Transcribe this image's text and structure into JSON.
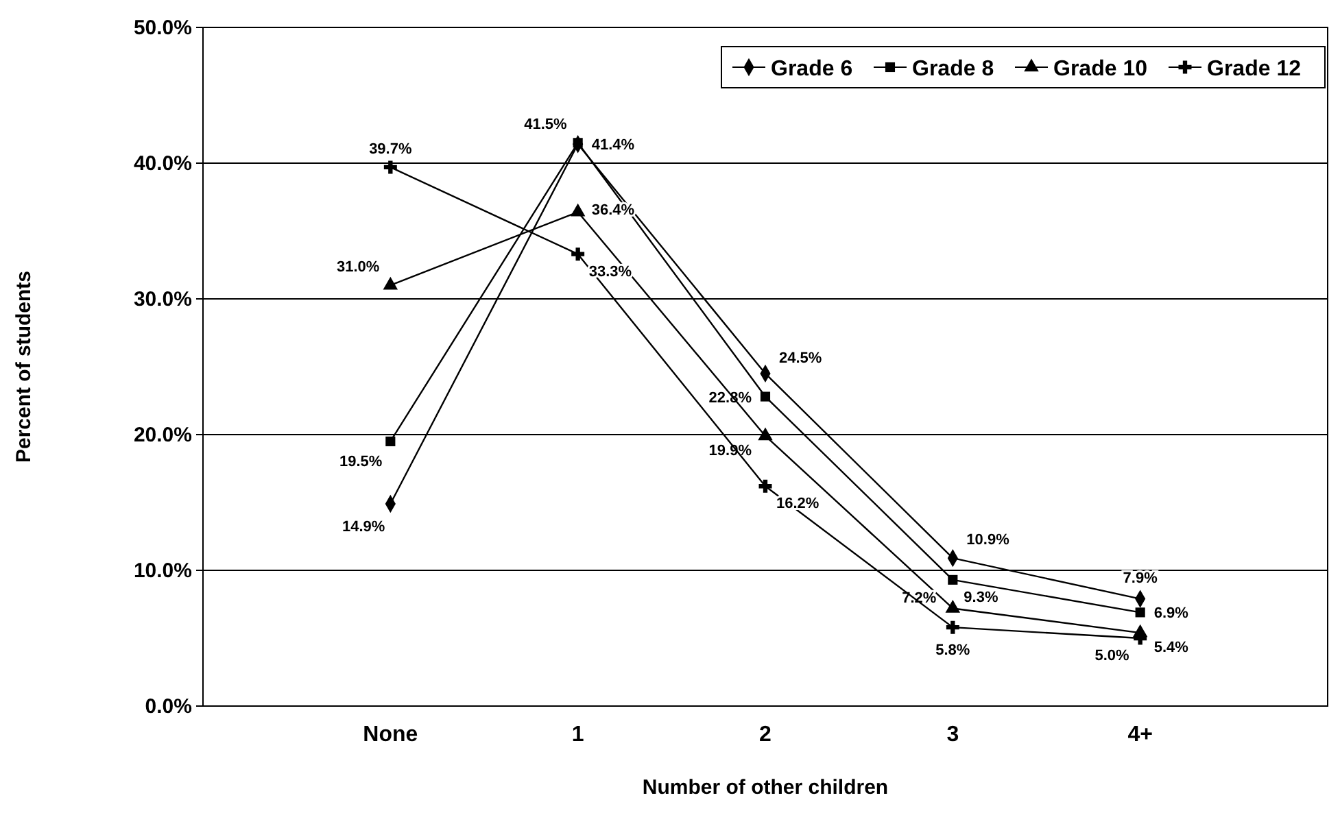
{
  "chart_data": {
    "type": "line",
    "xlabel": "Number of other children",
    "ylabel": "Percent of students",
    "categories": [
      "None",
      "1",
      "2",
      "3",
      "4+"
    ],
    "ylim": [
      0,
      50
    ],
    "yticks": [
      {
        "value": 0,
        "label": "0.0%"
      },
      {
        "value": 10,
        "label": "10.0%"
      },
      {
        "value": 20,
        "label": "20.0%"
      },
      {
        "value": 30,
        "label": "30.0%"
      },
      {
        "value": 40,
        "label": "40.0%"
      },
      {
        "value": 50,
        "label": "50.0%"
      }
    ],
    "grid": "y",
    "legend": "top right",
    "series": [
      {
        "name": "Grade 6",
        "color": "#000000",
        "marker": "diamond",
        "values": [
          14.9,
          41.4,
          24.5,
          10.9,
          7.9
        ],
        "value_labels": [
          "14.9%",
          "41.4%",
          "24.5%",
          "10.9%",
          "7.9%"
        ]
      },
      {
        "name": "Grade 8",
        "color": "#000000",
        "marker": "square",
        "values": [
          19.5,
          41.5,
          22.8,
          9.3,
          6.9
        ],
        "value_labels": [
          "19.5%",
          "41.5%",
          "22.8%",
          "9.3%",
          "6.9%"
        ]
      },
      {
        "name": "Grade 10",
        "color": "#000000",
        "marker": "triangle",
        "values": [
          31.0,
          36.4,
          19.9,
          7.2,
          5.4
        ],
        "value_labels": [
          "31.0%",
          "36.4%",
          "19.9%",
          "7.2%",
          "5.4%"
        ]
      },
      {
        "name": "Grade 12",
        "color": "#000000",
        "marker": "cross",
        "values": [
          39.7,
          33.3,
          16.2,
          5.8,
          5.0
        ],
        "value_labels": [
          "39.7%",
          "33.3%",
          "16.2%",
          "5.8%",
          "5.0%"
        ]
      }
    ]
  }
}
